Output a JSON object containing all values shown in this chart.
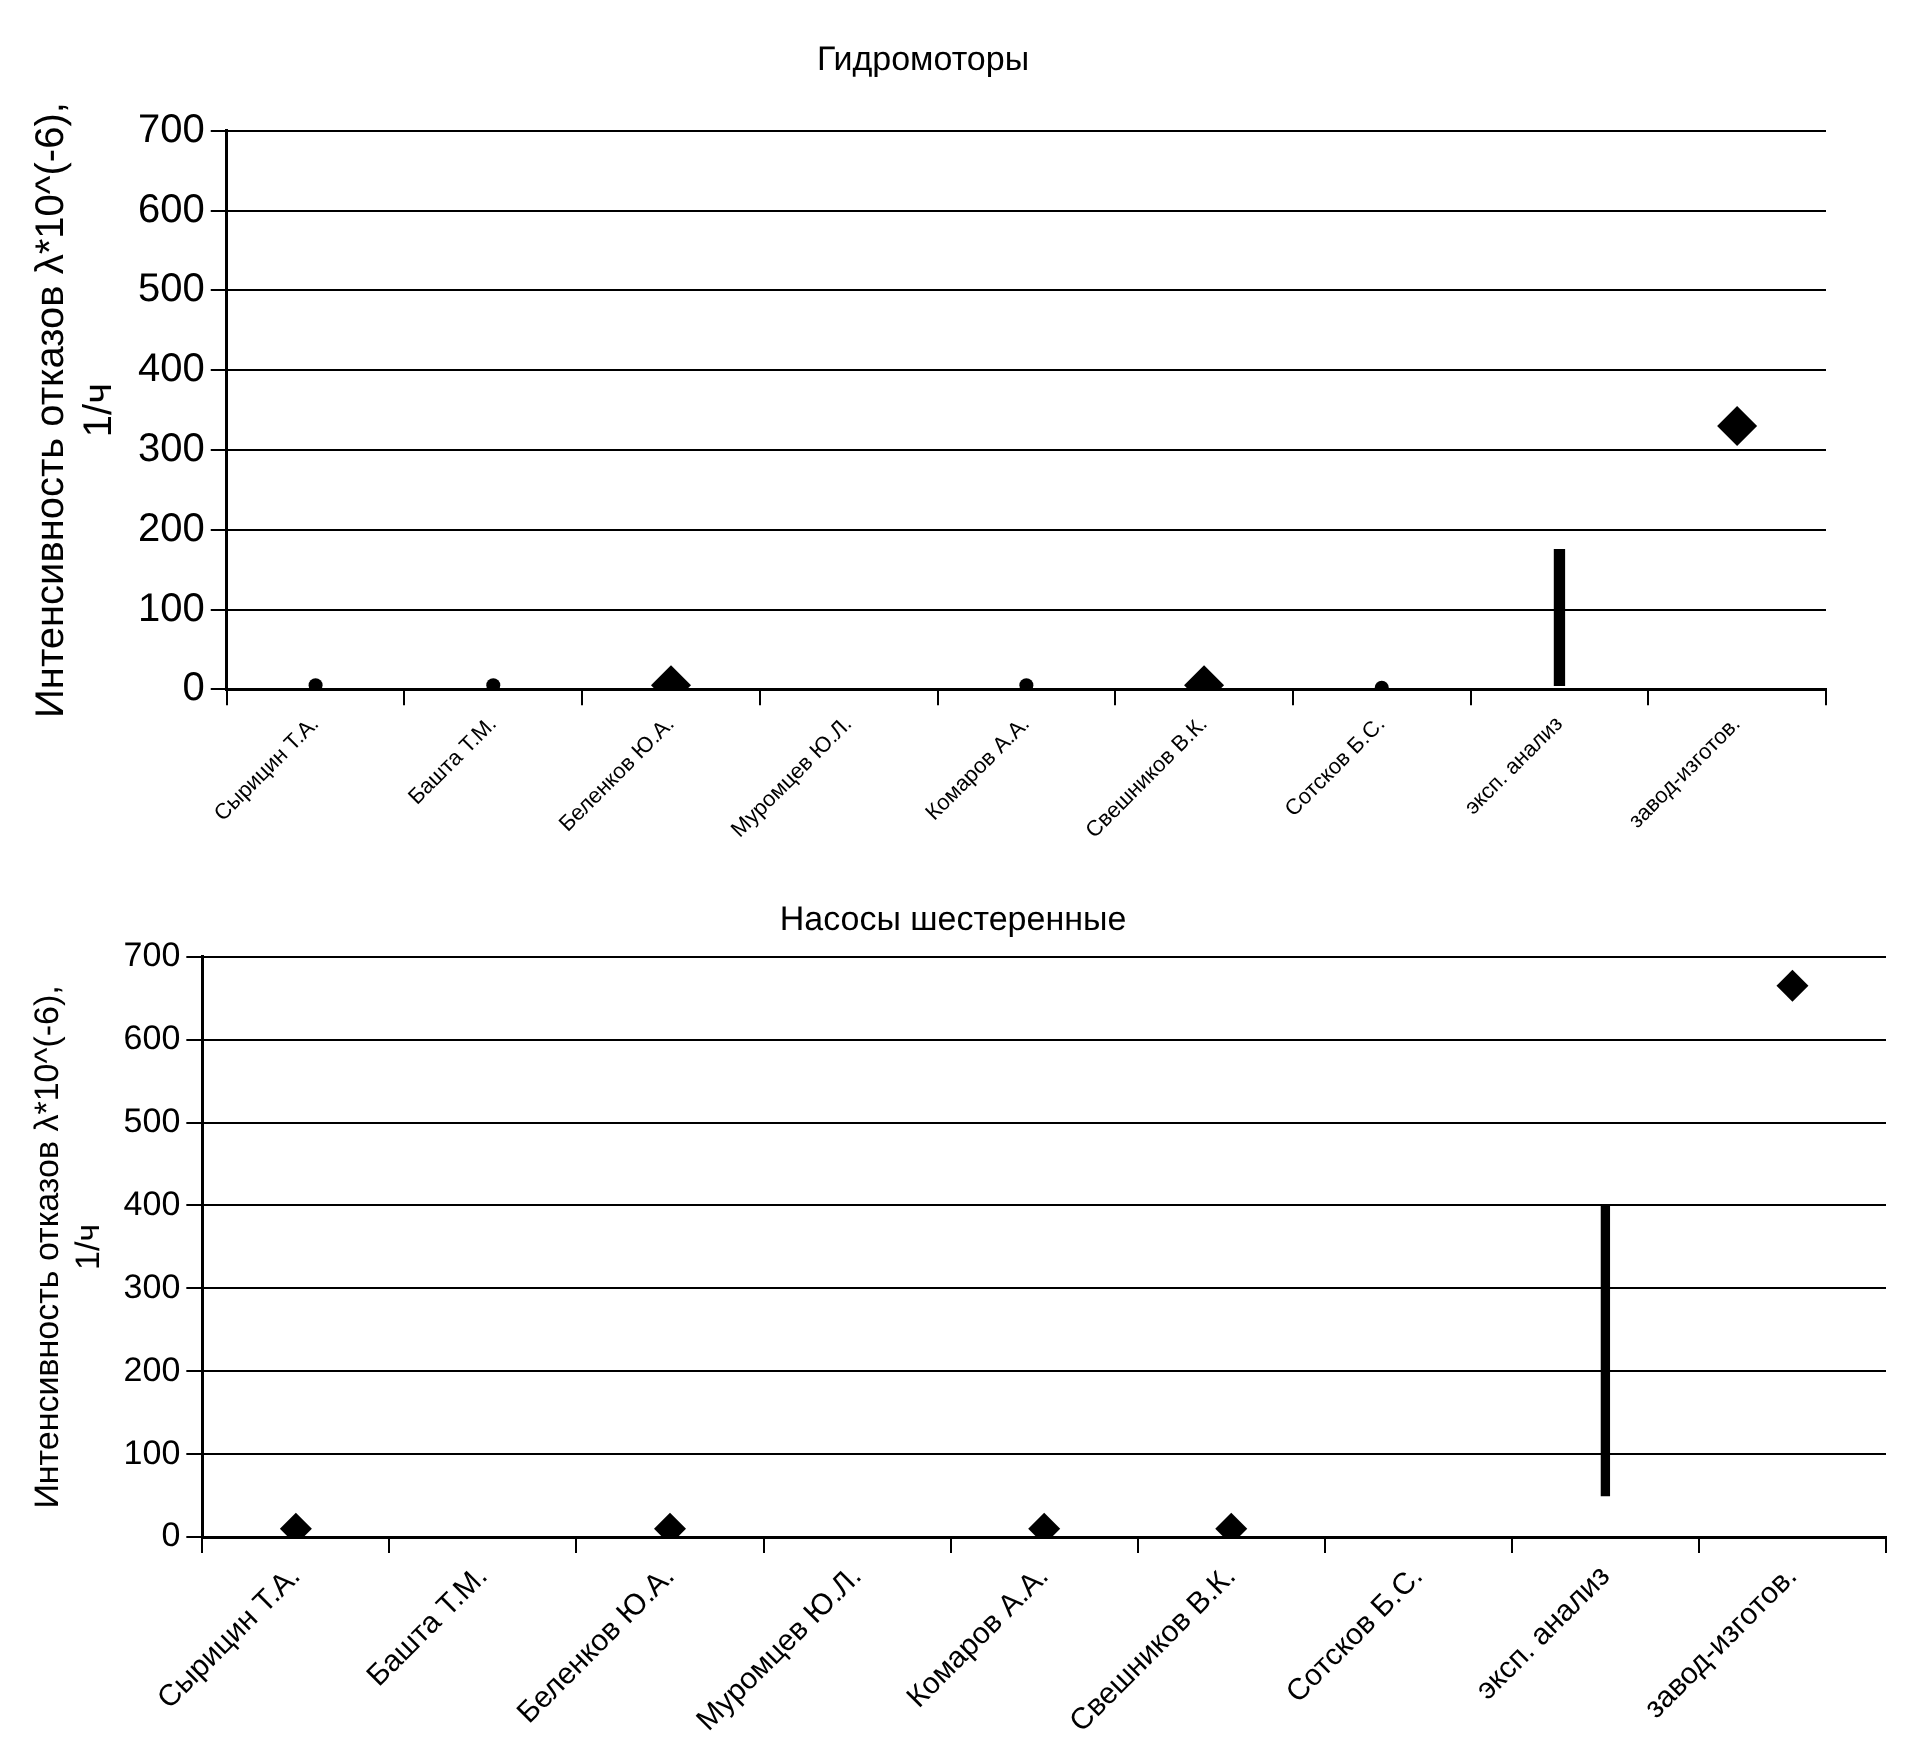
{
  "chart_data": [
    {
      "type": "scatter",
      "title": "Гидромоторы",
      "ylabel": "Интенсивность отказов λ*10^(-6), 1/ч",
      "categories": [
        "Сырицин Т.А.",
        "Башта Т.М.",
        "Беленков Ю.А.",
        "Муромцев Ю.Л.",
        "Комаров А.А.",
        "Свешников В.К.",
        "Сотсков Б.С.",
        "эксп. анализ",
        "завод-изготов."
      ],
      "ylim": [
        0,
        700
      ],
      "yticks": [
        0,
        100,
        200,
        300,
        400,
        500,
        600,
        700
      ],
      "grid": "y",
      "legend": false,
      "series": [
        {
          "marker": "circle",
          "color": "#000000",
          "values": [
            5,
            5,
            null,
            null,
            5,
            null,
            2,
            null,
            null
          ]
        },
        {
          "marker": "diamond",
          "color": "#000000",
          "values": [
            null,
            null,
            5,
            null,
            null,
            5,
            null,
            null,
            330
          ]
        },
        {
          "type": "bar",
          "color": "#000000",
          "base": [
            null,
            null,
            null,
            null,
            null,
            null,
            null,
            5,
            null
          ],
          "values": [
            null,
            null,
            null,
            null,
            null,
            null,
            null,
            170,
            null
          ]
        }
      ]
    },
    {
      "type": "scatter",
      "title": "Насосы шестеренные",
      "ylabel": "Интенсивность отказов λ*10^(-6), 1/ч",
      "categories": [
        "Сырицин Т.А.",
        "Башта Т.М.",
        "Беленков Ю.А.",
        "Муромцев Ю.Л.",
        "Комаров А.А.",
        "Свешников В.К.",
        "Сотсков Б.С.",
        "эксп. анализ",
        "завод-изготов."
      ],
      "ylim": [
        0,
        700
      ],
      "yticks": [
        0,
        100,
        200,
        300,
        400,
        500,
        600,
        700
      ],
      "grid": "y",
      "legend": false,
      "series": [
        {
          "marker": "diamond",
          "color": "#000000",
          "values": [
            10,
            null,
            10,
            null,
            10,
            10,
            null,
            null,
            665
          ]
        },
        {
          "type": "bar",
          "color": "#000000",
          "base": [
            null,
            null,
            null,
            null,
            null,
            null,
            null,
            50,
            null
          ],
          "values": [
            null,
            null,
            null,
            null,
            null,
            null,
            null,
            350,
            null
          ]
        }
      ]
    }
  ]
}
